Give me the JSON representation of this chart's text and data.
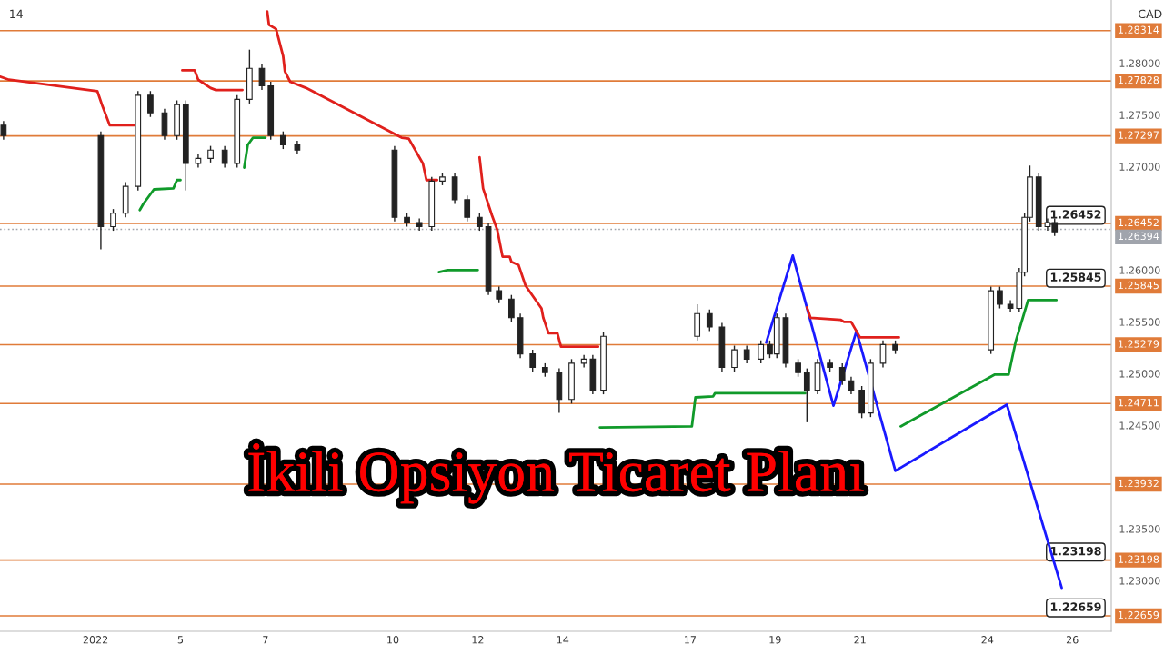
{
  "chart_data": {
    "type": "candlestick",
    "title": "İkili Opsiyon Ticaret Planı",
    "x": [
      "2021-12-31T20:00",
      "2022-01-03T03:00",
      "2022-01-03T10:00",
      "2022-01-03T17:00",
      "2022-01-04T00:00",
      "2022-01-04T07:00",
      "2022-01-04T15:00",
      "2022-01-04T22:00",
      "2022-01-05T03:00",
      "2022-01-05T10:00",
      "2022-01-05T17:00",
      "2022-01-06T01:00",
      "2022-01-06T08:00",
      "2022-01-06T15:00",
      "2022-01-06T22:00",
      "2022-01-07T03:00",
      "2022-01-07T10:00",
      "2022-01-07T18:00",
      "2022-01-10T01:00",
      "2022-01-10T08:00",
      "2022-01-10T15:00",
      "2022-01-10T22:00",
      "2022-01-11T04:00",
      "2022-01-11T11:00",
      "2022-01-11T18:00",
      "2022-01-12T01:00",
      "2022-01-12T06:00",
      "2022-01-12T12:00",
      "2022-01-12T19:00",
      "2022-01-13T00:00",
      "2022-01-13T07:00",
      "2022-01-13T14:00",
      "2022-01-13T22:00",
      "2022-01-14T05:00",
      "2022-01-14T12:00",
      "2022-01-14T17:00",
      "2022-01-14T23:00",
      "2022-01-17T04:00",
      "2022-01-17T11:00",
      "2022-01-17T18:00",
      "2022-01-18T01:00",
      "2022-01-18T08:00",
      "2022-01-18T16:00",
      "2022-01-18T21:00",
      "2022-01-19T01:00",
      "2022-01-19T06:00",
      "2022-01-19T13:00",
      "2022-01-19T18:00",
      "2022-01-20T00:00",
      "2022-01-20T07:00",
      "2022-01-20T14:00",
      "2022-01-20T19:00",
      "2022-01-21T01:00",
      "2022-01-21T06:00",
      "2022-01-21T13:00",
      "2022-01-21T20:00",
      "2022-01-24T02:00",
      "2022-01-24T07:00",
      "2022-01-24T13:00",
      "2022-01-24T18:00",
      "2022-01-24T21:00",
      "2022-01-25T00:00",
      "2022-01-25T05:00",
      "2022-01-25T10:00",
      "2022-01-25T14:00"
    ],
    "ohlc": [
      [
        1.274,
        1.2744,
        1.2726,
        1.273
      ],
      [
        1.273,
        1.2734,
        1.262,
        1.2642
      ],
      [
        1.2642,
        1.2659,
        1.2638,
        1.2655
      ],
      [
        1.2655,
        1.2685,
        1.2651,
        1.2681
      ],
      [
        1.2681,
        1.2773,
        1.2677,
        1.2769
      ],
      [
        1.2769,
        1.2773,
        1.2748,
        1.2752
      ],
      [
        1.2752,
        1.2756,
        1.2726,
        1.273
      ],
      [
        1.273,
        1.2764,
        1.2726,
        1.276
      ],
      [
        1.276,
        1.2764,
        1.2677,
        1.2703
      ],
      [
        1.2703,
        1.2712,
        1.2699,
        1.2708
      ],
      [
        1.2708,
        1.272,
        1.2704,
        1.2716
      ],
      [
        1.2716,
        1.272,
        1.2699,
        1.2703
      ],
      [
        1.2703,
        1.2769,
        1.2699,
        1.2765
      ],
      [
        1.2765,
        1.2813,
        1.2761,
        1.2795
      ],
      [
        1.2795,
        1.2799,
        1.2774,
        1.2778
      ],
      [
        1.2778,
        1.2782,
        1.2726,
        1.273
      ],
      [
        1.273,
        1.2734,
        1.2717,
        1.2721
      ],
      [
        1.2721,
        1.2725,
        1.2712,
        1.2716
      ],
      [
        1.2716,
        1.272,
        1.2647,
        1.2651
      ],
      [
        1.2651,
        1.2655,
        1.2642,
        1.2646
      ],
      [
        1.2646,
        1.265,
        1.2638,
        1.2642
      ],
      [
        1.2642,
        1.269,
        1.2638,
        1.2686
      ],
      [
        1.2686,
        1.2694,
        1.2682,
        1.269
      ],
      [
        1.269,
        1.2694,
        1.2664,
        1.2668
      ],
      [
        1.2668,
        1.2672,
        1.2647,
        1.2651
      ],
      [
        1.2651,
        1.2655,
        1.2638,
        1.2642
      ],
      [
        1.2642,
        1.2646,
        1.2576,
        1.258
      ],
      [
        1.258,
        1.2584,
        1.2568,
        1.2572
      ],
      [
        1.2572,
        1.2576,
        1.255,
        1.2554
      ],
      [
        1.2554,
        1.2558,
        1.2515,
        1.2519
      ],
      [
        1.2519,
        1.2523,
        1.2502,
        1.2506
      ],
      [
        1.2506,
        1.251,
        1.2497,
        1.2501
      ],
      [
        1.2501,
        1.2505,
        1.2462,
        1.2475
      ],
      [
        1.2475,
        1.2514,
        1.2471,
        1.251
      ],
      [
        1.251,
        1.2518,
        1.2506,
        1.2514
      ],
      [
        1.2514,
        1.2518,
        1.248,
        1.2484
      ],
      [
        1.2484,
        1.254,
        1.248,
        1.2536
      ],
      [
        1.2536,
        1.2567,
        1.2532,
        1.2558
      ],
      [
        1.2558,
        1.2562,
        1.2541,
        1.2545
      ],
      [
        1.2545,
        1.2549,
        1.2502,
        1.2506
      ],
      [
        1.2506,
        1.2527,
        1.2502,
        1.2523
      ],
      [
        1.2523,
        1.2527,
        1.251,
        1.2514
      ],
      [
        1.2514,
        1.2532,
        1.251,
        1.2528
      ],
      [
        1.2528,
        1.2532,
        1.2515,
        1.2519
      ],
      [
        1.2519,
        1.2558,
        1.2515,
        1.2554
      ],
      [
        1.2554,
        1.2558,
        1.2506,
        1.251
      ],
      [
        1.251,
        1.2514,
        1.2497,
        1.2501
      ],
      [
        1.2501,
        1.2505,
        1.2453,
        1.2484
      ],
      [
        1.2484,
        1.2514,
        1.248,
        1.251
      ],
      [
        1.251,
        1.2514,
        1.2502,
        1.2506
      ],
      [
        1.2506,
        1.251,
        1.2489,
        1.2493
      ],
      [
        1.2493,
        1.2497,
        1.248,
        1.2484
      ],
      [
        1.2484,
        1.2488,
        1.2457,
        1.2462
      ],
      [
        1.2462,
        1.2514,
        1.2458,
        1.251
      ],
      [
        1.251,
        1.2532,
        1.2506,
        1.2528
      ],
      [
        1.2528,
        1.2532,
        1.2519,
        1.2523
      ],
      [
        1.2523,
        1.2584,
        1.2519,
        1.258
      ],
      [
        1.258,
        1.2584,
        1.2563,
        1.2567
      ],
      [
        1.2567,
        1.2571,
        1.2559,
        1.2563
      ],
      [
        1.2563,
        1.2602,
        1.2559,
        1.2598
      ],
      [
        1.2598,
        1.2655,
        1.2594,
        1.2651
      ],
      [
        1.2651,
        1.2701,
        1.2647,
        1.269
      ],
      [
        1.269,
        1.2694,
        1.2638,
        1.2642
      ],
      [
        1.2642,
        1.265,
        1.2638,
        1.2646
      ],
      [
        1.2646,
        1.265,
        1.2633,
        1.2637
      ]
    ],
    "series": [
      {
        "type": "line",
        "color": "#e0201c",
        "x": [
          "2021-12-31T18:00",
          "2021-12-31T23:00",
          "2022-01-03T01:00",
          "2022-01-03T04:00",
          "2022-01-03T08:00",
          "2022-01-03T23:00"
        ],
        "values": [
          1.2787,
          1.2784,
          1.2773,
          1.2758,
          1.274,
          1.274
        ]
      },
      {
        "type": "line",
        "color": "#e0201c",
        "x": [
          "2022-01-05T01:00",
          "2022-01-05T08:00",
          "2022-01-05T10:00",
          "2022-01-05T17:00",
          "2022-01-05T20:00",
          "2022-01-06T11:00"
        ],
        "values": [
          1.2793,
          1.2793,
          1.2784,
          1.2776,
          1.2774,
          1.2774
        ]
      },
      {
        "type": "line",
        "color": "#e0201c",
        "x": [
          "2022-01-07T01:00",
          "2022-01-07T02:00",
          "2022-01-07T06:00",
          "2022-01-07T10:00",
          "2022-01-07T11:00",
          "2022-01-07T14:00",
          "2022-01-07T23:00",
          "2022-01-10T05:00",
          "2022-01-10T09:00",
          "2022-01-10T17:00",
          "2022-01-10T19:00",
          "2022-01-11T01:00"
        ],
        "values": [
          1.285,
          1.2837,
          1.2833,
          1.2807,
          1.2792,
          1.2782,
          1.2776,
          1.2728,
          1.2727,
          1.2703,
          1.2687,
          1.2687
        ]
      },
      {
        "type": "line",
        "color": "#e0201c",
        "x": [
          "2022-01-12T01:00",
          "2022-01-12T03:00",
          "2022-01-12T08:00",
          "2022-01-12T11:00",
          "2022-01-12T14:00",
          "2022-01-12T18:00",
          "2022-01-12T19:00",
          "2022-01-12T23:00",
          "2022-01-13T03:00",
          "2022-01-13T12:00",
          "2022-01-13T13:00",
          "2022-01-13T16:00",
          "2022-01-13T21:00",
          "2022-01-13T23:00",
          "2022-01-14T20:00"
        ],
        "values": [
          1.2709,
          1.2679,
          1.2653,
          1.2639,
          1.2613,
          1.2613,
          1.2608,
          1.2605,
          1.2585,
          1.2563,
          1.2554,
          1.2539,
          1.2539,
          1.2526,
          1.2526
        ]
      },
      {
        "type": "line",
        "color": "#e0201c",
        "x": [
          "2022-01-19T18:00",
          "2022-01-19T20:00",
          "2022-01-20T13:00",
          "2022-01-20T15:00",
          "2022-01-20T19:00",
          "2022-01-21T00:00",
          "2022-01-21T22:00"
        ],
        "values": [
          1.2564,
          1.2554,
          1.2552,
          1.255,
          1.255,
          1.2535,
          1.2535
        ]
      },
      {
        "type": "line",
        "color": "#109a2a",
        "x": [
          "2022-01-04T01:00",
          "2022-01-04T03:00",
          "2022-01-04T09:00",
          "2022-01-04T20:00",
          "2022-01-04T22:00",
          "2022-01-05T00:00"
        ],
        "values": [
          1.2658,
          1.2664,
          1.2678,
          1.2679,
          1.2687,
          1.2687
        ]
      },
      {
        "type": "line",
        "color": "#109a2a",
        "x": [
          "2022-01-06T12:00",
          "2022-01-06T14:00",
          "2022-01-06T17:00",
          "2022-01-07T00:00"
        ],
        "values": [
          1.2699,
          1.2721,
          1.2728,
          1.2728
        ]
      },
      {
        "type": "line",
        "color": "#109a2a",
        "x": [
          "2022-01-11T02:00",
          "2022-01-11T07:00",
          "2022-01-12T00:00"
        ],
        "values": [
          1.2598,
          1.26,
          1.26
        ]
      },
      {
        "type": "line",
        "color": "#109a2a",
        "x": [
          "2022-01-14T21:00",
          "2022-01-17T01:00",
          "2022-01-17T03:00",
          "2022-01-17T13:00",
          "2022-01-17T14:00",
          "2022-01-19T17:00"
        ],
        "values": [
          1.2448,
          1.2449,
          1.2477,
          1.2478,
          1.2481,
          1.2481
        ]
      },
      {
        "type": "line",
        "color": "#109a2a",
        "x": [
          "2022-01-21T23:00",
          "2022-01-24T04:00",
          "2022-01-24T12:00",
          "2022-01-24T16:00",
          "2022-01-24T23:00",
          "2022-01-25T15:00"
        ],
        "values": [
          1.2449,
          1.2499,
          1.2499,
          1.2531,
          1.2571,
          1.2571
        ]
      },
      {
        "type": "line",
        "color": "#1a1aff",
        "x": [
          "2022-01-18T19:00",
          "2022-01-19T10:00",
          "2022-01-20T09:00",
          "2022-01-20T22:00",
          "2022-01-21T20:00",
          "2022-01-24T11:00",
          "2022-01-25T18:00"
        ],
        "values": [
          1.253,
          1.2614,
          1.2469,
          1.2541,
          1.2406,
          1.247,
          1.2293
        ]
      }
    ],
    "xlim": [
      "2021-12-31T18:00",
      "2022-01-26T22:00"
    ],
    "xticks": [
      {
        "value": "2022-01-03",
        "label": "2022"
      },
      {
        "value": "2022-01-05",
        "label": "5"
      },
      {
        "value": "2022-01-07",
        "label": "7"
      },
      {
        "value": "2022-01-10",
        "label": "10"
      },
      {
        "value": "2022-01-12",
        "label": "12"
      },
      {
        "value": "2022-01-14",
        "label": "14"
      },
      {
        "value": "2022-01-17",
        "label": "17"
      },
      {
        "value": "2022-01-19",
        "label": "19"
      },
      {
        "value": "2022-01-21",
        "label": "21"
      },
      {
        "value": "2022-01-24",
        "label": "24"
      },
      {
        "value": "2022-01-26",
        "label": "26"
      }
    ],
    "ylim": [
      1.2251,
      1.2861
    ],
    "yticks": [
      {
        "value": 1.23,
        "label": "1.23000"
      },
      {
        "value": 1.235,
        "label": "1.23500"
      },
      {
        "value": 1.245,
        "label": "1.24500"
      },
      {
        "value": 1.25,
        "label": "1.25000"
      },
      {
        "value": 1.255,
        "label": "1.25500"
      },
      {
        "value": 1.26,
        "label": "1.26000"
      },
      {
        "value": 1.27,
        "label": "1.27000"
      },
      {
        "value": 1.275,
        "label": "1.27500"
      },
      {
        "value": 1.28,
        "label": "1.28000"
      }
    ],
    "ref_lines": [
      {
        "axis": "y",
        "value": 1.28314,
        "label": "1.28314",
        "color": "#e07b39"
      },
      {
        "axis": "y",
        "value": 1.27828,
        "label": "1.27828",
        "color": "#e07b39"
      },
      {
        "axis": "y",
        "value": 1.27297,
        "label": "1.27297",
        "color": "#e07b39"
      },
      {
        "axis": "y",
        "value": 1.26452,
        "label": "1.26452",
        "color": "#e07b39"
      },
      {
        "axis": "y",
        "value": 1.26394,
        "label": "1.26394",
        "color": "#a0a4ac",
        "line_style": "dotted"
      },
      {
        "axis": "y",
        "value": 1.25845,
        "label": "1.25845",
        "color": "#e07b39"
      },
      {
        "axis": "y",
        "value": 1.25279,
        "label": "1.25279",
        "color": "#e07b39"
      },
      {
        "axis": "y",
        "value": 1.24711,
        "label": "1.24711",
        "color": "#e07b39"
      },
      {
        "axis": "y",
        "value": 1.23932,
        "label": "1.23932",
        "color": "#e07b39"
      },
      {
        "axis": "y",
        "value": 1.23198,
        "label": "1.23198",
        "color": "#e07b39"
      },
      {
        "axis": "y",
        "value": 1.22659,
        "label": "1.22659",
        "color": "#e07b39"
      }
    ],
    "annotations": [
      "14",
      "CAD",
      {
        "text": "1.26452",
        "x": "2022-01-25T17:00",
        "y": 1.26452
      },
      {
        "text": "1.25845",
        "x": "2022-01-25T17:00",
        "y": 1.25845
      },
      {
        "text": "1.23198",
        "x": "2022-01-25T17:00",
        "y": 1.23198
      },
      {
        "text": "1.22659",
        "x": "2022-01-25T17:00",
        "y": 1.22659
      }
    ],
    "grid": false,
    "legend": false
  }
}
